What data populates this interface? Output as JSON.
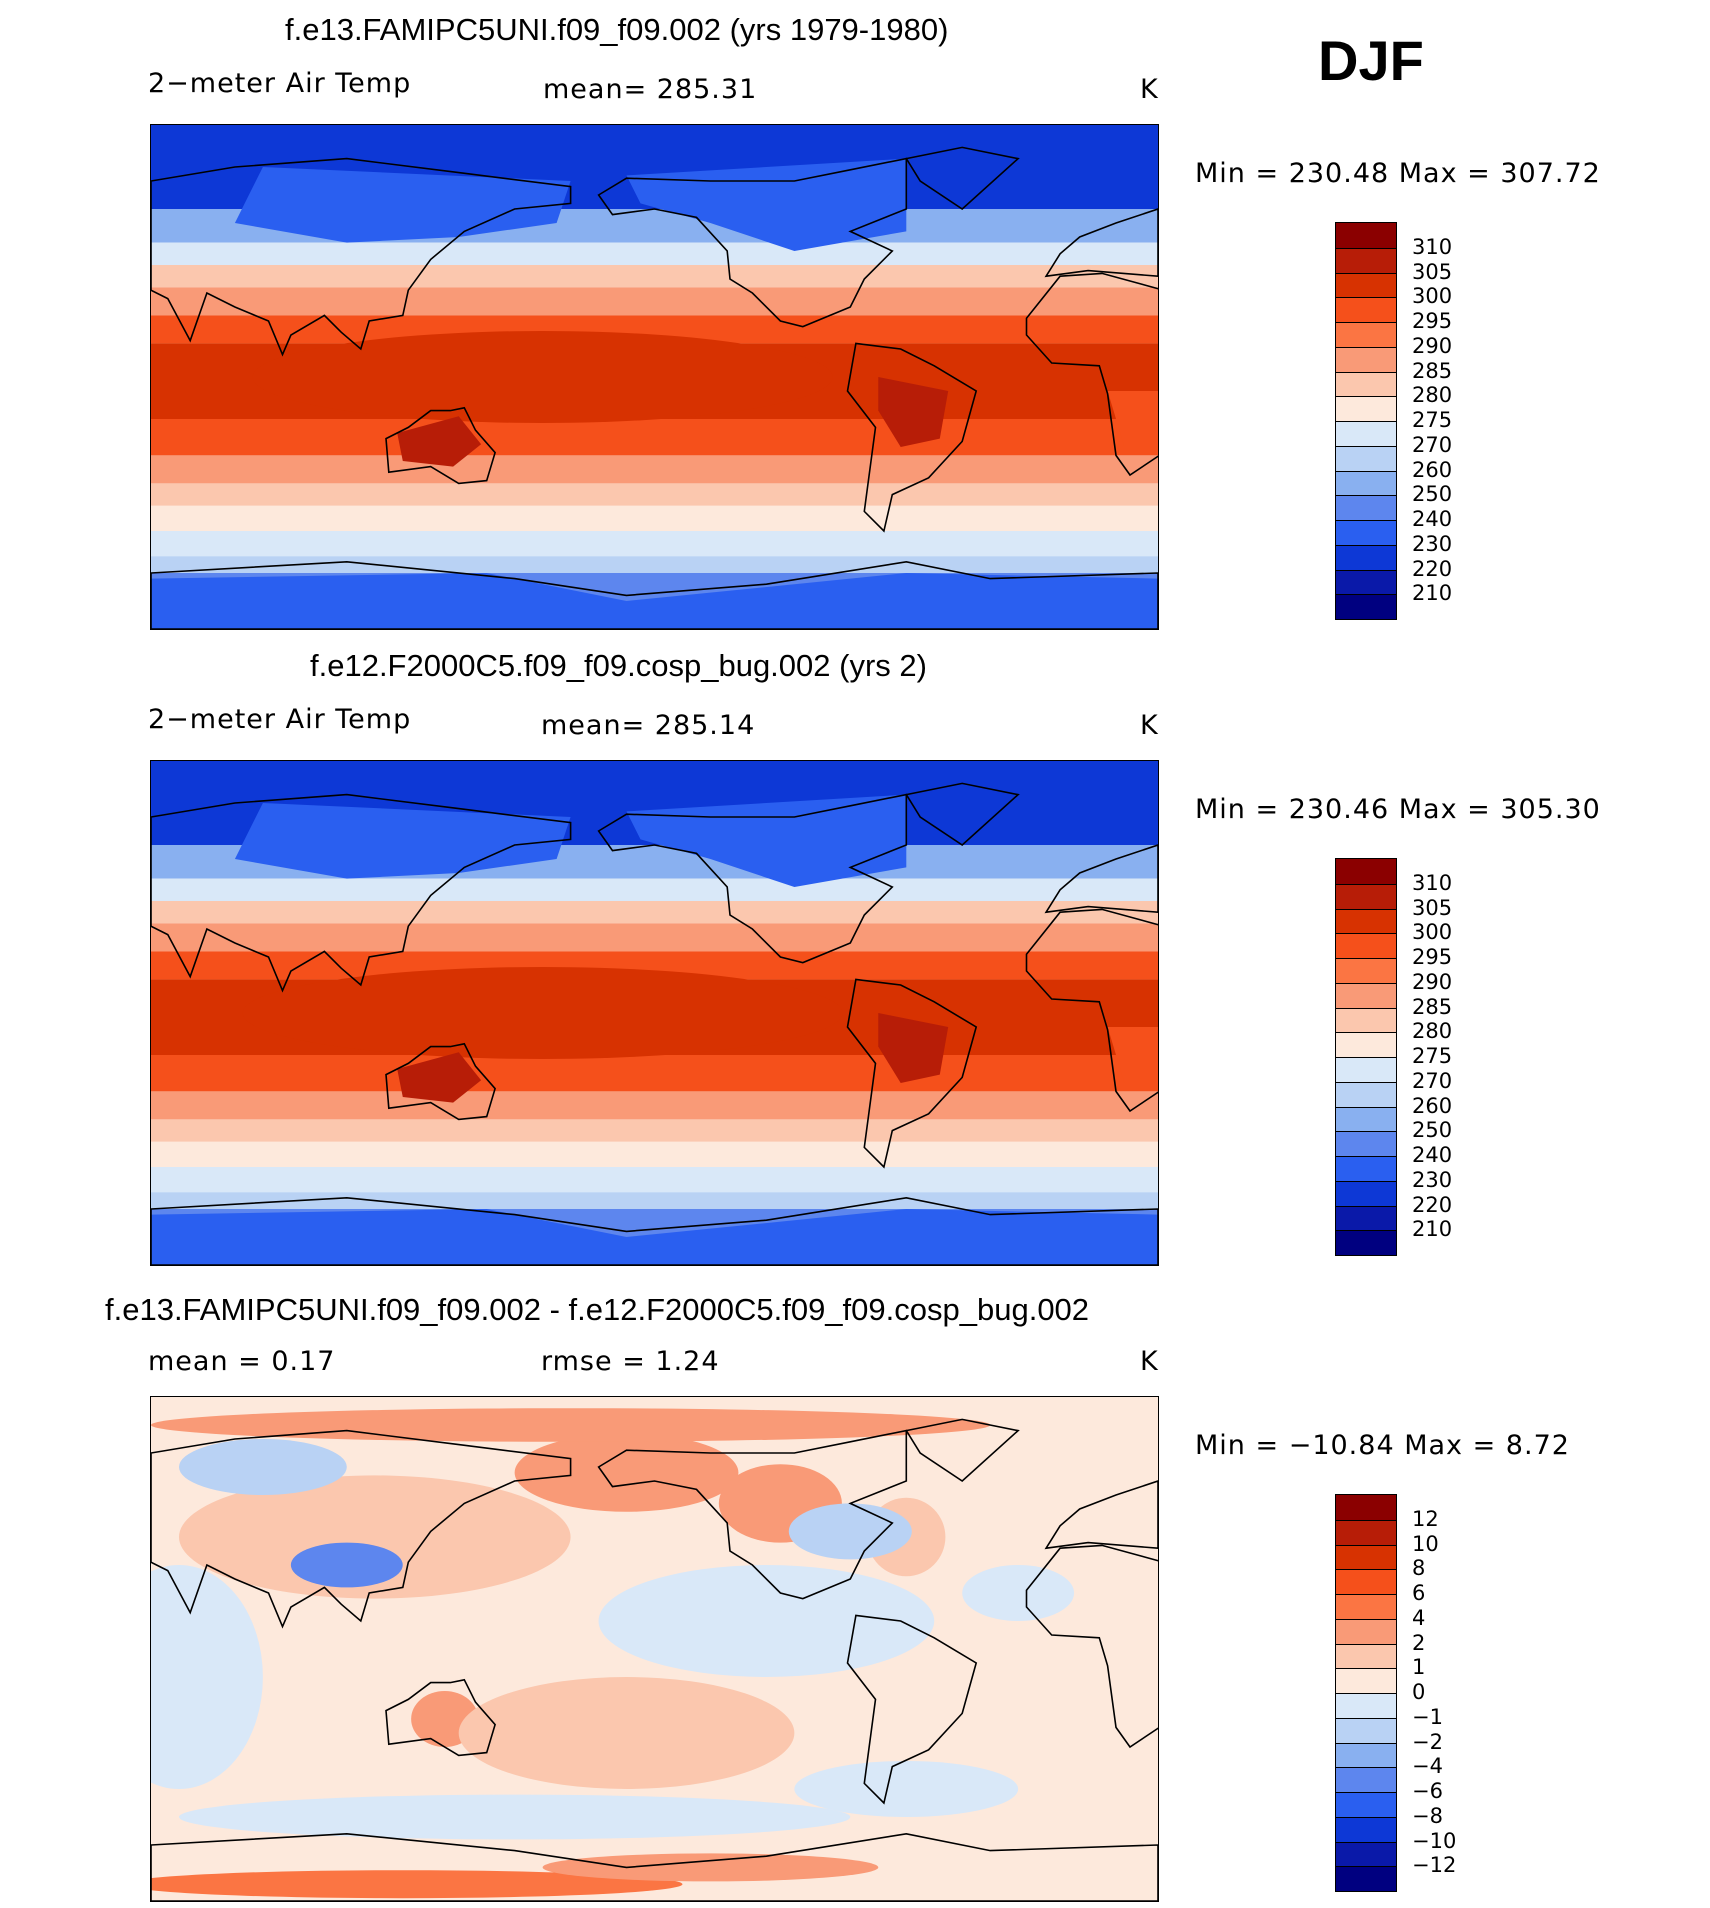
{
  "season": "DJF",
  "panels": [
    {
      "title": "f.e13.FAMIPC5UNI.f09_f09.002 (yrs 1979-1980)",
      "left_label": "2−meter Air Temp",
      "center_label": "mean=  285.31",
      "units": "K",
      "minmax": "Min  =  230.48  Max  =  307.72",
      "colorbar_labels": [
        "310",
        "305",
        "300",
        "295",
        "290",
        "285",
        "280",
        "275",
        "270",
        "260",
        "250",
        "240",
        "230",
        "220",
        "210"
      ],
      "colorbar_colors": [
        "#8b0000",
        "#b71d07",
        "#d73201",
        "#f5501b",
        "#fb7543",
        "#f99a77",
        "#fbc7ae",
        "#fde9dc",
        "#d9e8f8",
        "#b9d2f4",
        "#89b0f0",
        "#5d86ee",
        "#2a5ff0",
        "#0d38d6",
        "#0a19a9",
        "#000080"
      ],
      "map_style": "temp"
    },
    {
      "title": "f.e12.F2000C5.f09_f09.cosp_bug.002 (yrs 2)",
      "left_label": "2−meter Air Temp",
      "center_label": "mean=  285.14",
      "units": "K",
      "minmax": "Min  =  230.46  Max  =  305.30",
      "colorbar_labels": [
        "310",
        "305",
        "300",
        "295",
        "290",
        "285",
        "280",
        "275",
        "270",
        "260",
        "250",
        "240",
        "230",
        "220",
        "210"
      ],
      "colorbar_colors": [
        "#8b0000",
        "#b71d07",
        "#d73201",
        "#f5501b",
        "#fb7543",
        "#f99a77",
        "#fbc7ae",
        "#fde9dc",
        "#d9e8f8",
        "#b9d2f4",
        "#89b0f0",
        "#5d86ee",
        "#2a5ff0",
        "#0d38d6",
        "#0a19a9",
        "#000080"
      ],
      "map_style": "temp"
    },
    {
      "title": "f.e13.FAMIPC5UNI.f09_f09.002 - f.e12.F2000C5.f09_f09.cosp_bug.002",
      "left_label": "mean  =     0.17",
      "center_label": "rmse  =      1.24",
      "units": "K",
      "minmax": "Min  =  −10.84  Max  =      8.72",
      "colorbar_labels": [
        "12",
        "10",
        "8",
        "6",
        "4",
        "2",
        "1",
        "0",
        "−1",
        "−2",
        "−4",
        "−6",
        "−8",
        "−10",
        "−12"
      ],
      "colorbar_colors": [
        "#8b0000",
        "#b71d07",
        "#d73201",
        "#f5501b",
        "#fb7543",
        "#f99a77",
        "#fbc7ae",
        "#fde9dc",
        "#d9e8f8",
        "#b9d2f4",
        "#89b0f0",
        "#5d86ee",
        "#2a5ff0",
        "#0d38d6",
        "#0a19a9",
        "#000080"
      ],
      "map_style": "diff"
    }
  ]
}
